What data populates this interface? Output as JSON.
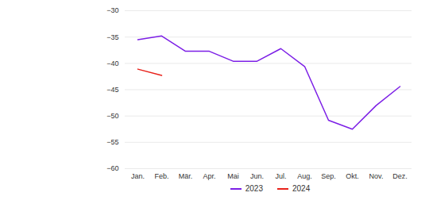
{
  "chart_data": {
    "type": "line",
    "categories": [
      "Jan.",
      "Feb.",
      "Mär.",
      "Apr.",
      "Mai",
      "Jun.",
      "Jul.",
      "Aug.",
      "Sep.",
      "Okt.",
      "Nov.",
      "Dez."
    ],
    "series": [
      {
        "name": "2023",
        "color": "#7c1fe6",
        "values": [
          -35.5,
          -34.8,
          -37.7,
          -37.7,
          -39.6,
          -39.6,
          -37.2,
          -40.6,
          -50.8,
          -52.5,
          -48.0,
          -44.4
        ]
      },
      {
        "name": "2024",
        "color": "#e8221b",
        "values": [
          -41.1,
          -42.3,
          null,
          null,
          null,
          null,
          null,
          null,
          null,
          null,
          null,
          null
        ]
      }
    ],
    "ylim": [
      -60,
      -30
    ],
    "yticks": [
      -60,
      -55,
      -50,
      -45,
      -40,
      -35,
      -30
    ],
    "grid": true,
    "legend": "bottom"
  }
}
